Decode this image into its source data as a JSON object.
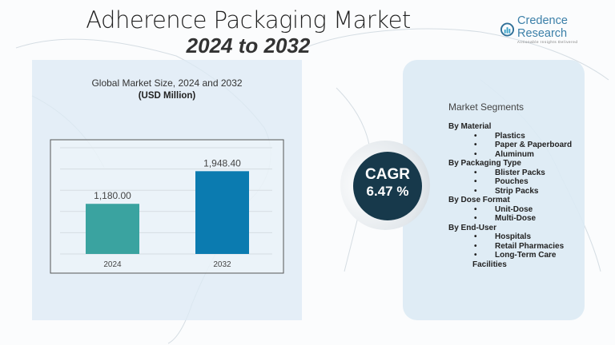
{
  "header": {
    "title": "Adherence Packaging Market",
    "subtitle": "2024 to 2032"
  },
  "logo": {
    "name": "Credence Research",
    "tagline": "Actionable Insights Delivered"
  },
  "chart_data": {
    "type": "bar",
    "title": "Global Market Size, 2024 and 2032",
    "ylabel": "(USD Million)",
    "categories": [
      "2024",
      "2032"
    ],
    "values": [
      1180.0,
      1948.4
    ],
    "data_labels": [
      "1,180.00",
      "1,948.40"
    ],
    "colors": [
      "#3aa3a0",
      "#0b7bb0"
    ],
    "ylim": [
      0,
      2500
    ],
    "grid": true
  },
  "cagr": {
    "label": "CAGR",
    "value": "6.47 %"
  },
  "segments": {
    "title": "Market Segments",
    "groups": [
      {
        "name": "By Material",
        "items": [
          "Plastics",
          "Paper & Paperboard",
          "Aluminum"
        ]
      },
      {
        "name": "By Packaging Type",
        "items": [
          "Blister Packs",
          "Pouches",
          "Strip Packs"
        ]
      },
      {
        "name": "By Dose Format",
        "items": [
          "Unit-Dose",
          "Multi-Dose"
        ]
      },
      {
        "name": "By End-User",
        "items": [
          "Hospitals",
          "Retail Pharmacies",
          "Long-Term Care"
        ],
        "continuation": "Facilities"
      }
    ]
  }
}
